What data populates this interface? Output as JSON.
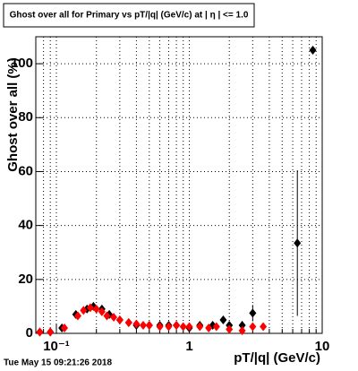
{
  "chart_data": {
    "type": "scatter",
    "title": "Ghost over all for Primary vs pT/|q| (GeV/c) at | η | <= 1.0",
    "x_label": "pT/|q| (GeV/c)",
    "y_label": "Ghost over all (%)",
    "footer": "Tue May 15 09:21:26 2018",
    "xlim": [
      0.07,
      10
    ],
    "ylim": [
      0,
      110
    ],
    "log_x": true,
    "grid": true,
    "xticks": [
      {
        "value": 0.1,
        "label": "10⁻¹"
      },
      1,
      10
    ],
    "xminorticks": [
      0.08,
      0.09,
      0.2,
      0.3,
      0.4,
      0.5,
      0.6,
      0.7,
      0.8,
      0.9,
      2,
      3,
      4,
      5,
      6,
      7,
      8,
      9
    ],
    "yticks": [
      0,
      20,
      40,
      60,
      80,
      100
    ],
    "series": [
      {
        "name": "all",
        "color": "#000000",
        "x": [
          0.075,
          0.09,
          0.11,
          0.14,
          0.17,
          0.19,
          0.22,
          0.25,
          0.3,
          0.35,
          0.4,
          0.5,
          0.6,
          0.7,
          0.8,
          1,
          1.2,
          1.5,
          1.8,
          2,
          2.5,
          3,
          6.5,
          8.5
        ],
        "values": [
          0.5,
          0.5,
          2,
          7,
          9,
          10,
          9,
          7,
          5,
          4,
          3,
          3,
          3,
          3,
          3,
          2,
          3,
          3,
          5,
          3,
          3,
          7.5,
          33.5,
          105
        ],
        "errors": [
          0.5,
          0.5,
          0.5,
          0.7,
          0.8,
          0.8,
          0.8,
          0.7,
          0.6,
          0.6,
          0.5,
          0.5,
          0.5,
          0.5,
          0.6,
          0.6,
          0.7,
          0.8,
          1.2,
          1,
          1.5,
          3,
          27,
          0.5
        ]
      },
      {
        "name": "primary",
        "color": "#ff0000",
        "x": [
          0.075,
          0.09,
          0.115,
          0.145,
          0.16,
          0.18,
          0.2,
          0.22,
          0.24,
          0.27,
          0.3,
          0.35,
          0.4,
          0.45,
          0.5,
          0.6,
          0.7,
          0.8,
          0.9,
          1,
          1.2,
          1.4,
          1.6,
          2,
          2.5,
          3,
          3.6
        ],
        "values": [
          0.5,
          0.5,
          2,
          6.5,
          8.5,
          9.5,
          9,
          8,
          6.5,
          6,
          5,
          4,
          3.5,
          3,
          3,
          2.5,
          2.5,
          3,
          2.5,
          2.5,
          2.5,
          2,
          2.5,
          1.5,
          1,
          2.5,
          2.5
        ]
      }
    ]
  }
}
